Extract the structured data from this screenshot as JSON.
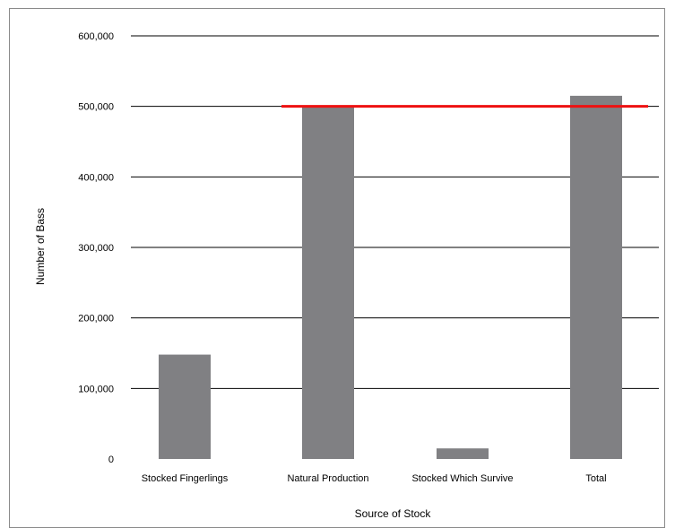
{
  "chart_data": {
    "type": "bar",
    "categories": [
      "Stocked Fingerlings",
      "Natural Production",
      "Stocked Which Survive",
      "Total"
    ],
    "values": [
      148000,
      500000,
      15000,
      515000
    ],
    "xlabel": "Source of Stock",
    "ylabel": "Number of Bass",
    "ylim": [
      0,
      600000
    ],
    "yticks": [
      0,
      100000,
      200000,
      300000,
      400000,
      500000,
      600000
    ],
    "ytick_labels": [
      "0",
      "100,000",
      "200,000",
      "300,000",
      "400,000",
      "500,000",
      "600,000"
    ],
    "reference_line": {
      "y": 500000,
      "color": "#ee1111",
      "from_category": 1,
      "to_category": 3
    },
    "bar_color": "#808083",
    "grid": true
  }
}
